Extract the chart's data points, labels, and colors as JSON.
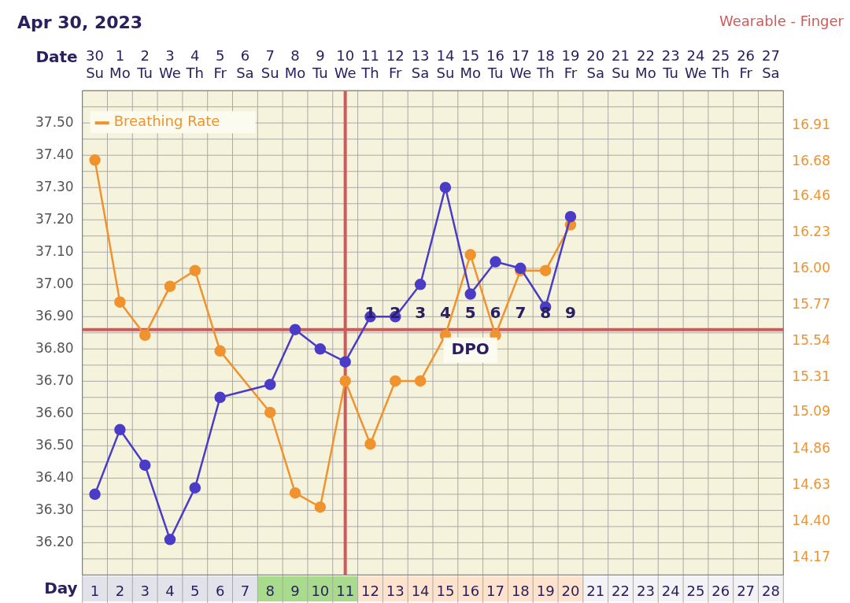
{
  "chart_data": {
    "type": "line",
    "title": "Apr 30, 2023",
    "subtitle": "Wearable - Finger",
    "xlabel": "Date",
    "x2label": "Day",
    "x": [
      "2023-04-30",
      "2023-05-01",
      "2023-05-02",
      "2023-05-03",
      "2023-05-04",
      "2023-05-05",
      "2023-05-06",
      "2023-05-07",
      "2023-05-08",
      "2023-05-09",
      "2023-05-10",
      "2023-05-11",
      "2023-05-12",
      "2023-05-13",
      "2023-05-14",
      "2023-05-15",
      "2023-05-16",
      "2023-05-17",
      "2023-05-18",
      "2023-05-19"
    ],
    "series": [
      {
        "color": "#4b3cc8",
        "values": [
          36.35,
          36.55,
          36.44,
          36.21,
          36.37,
          36.65,
          null,
          36.69,
          36.86,
          36.8,
          36.76,
          36.9,
          36.9,
          37.0,
          37.3,
          36.97,
          37.07,
          37.05,
          36.93,
          37.21
        ]
      },
      {
        "name": "Breathing Rate",
        "color": "#f0922e",
        "axis": "y2",
        "values": [
          16.69,
          15.79,
          15.58,
          15.89,
          15.99,
          15.48,
          null,
          15.09,
          14.58,
          14.49,
          15.29,
          14.89,
          15.29,
          15.29,
          15.58,
          16.09,
          15.58,
          15.99,
          15.99,
          16.28
        ]
      }
    ],
    "xlim": [
      "2023-04-29T12:00",
      "2023-05-27T12:00"
    ],
    "xticks": [
      {
        "value": "2023-04-30",
        "label": "30\nSu"
      },
      {
        "value": "2023-05-01",
        "label": "1\nMo"
      },
      {
        "value": "2023-05-02",
        "label": "2\nTu"
      },
      {
        "value": "2023-05-03",
        "label": "3\nWe"
      },
      {
        "value": "2023-05-04",
        "label": "4\nTh"
      },
      {
        "value": "2023-05-05",
        "label": "5\nFr"
      },
      {
        "value": "2023-05-06",
        "label": "6\nSa"
      },
      {
        "value": "2023-05-07",
        "label": "7\nSu"
      },
      {
        "value": "2023-05-08",
        "label": "8\nMo"
      },
      {
        "value": "2023-05-09",
        "label": "9\nTu"
      },
      {
        "value": "2023-05-10",
        "label": "10\nWe"
      },
      {
        "value": "2023-05-11",
        "label": "11\nTh"
      },
      {
        "value": "2023-05-12",
        "label": "12\nFr"
      },
      {
        "value": "2023-05-13",
        "label": "13\nSa"
      },
      {
        "value": "2023-05-14",
        "label": "14\nSu"
      },
      {
        "value": "2023-05-15",
        "label": "15\nMo"
      },
      {
        "value": "2023-05-16",
        "label": "16\nTu"
      },
      {
        "value": "2023-05-17",
        "label": "17\nWe"
      },
      {
        "value": "2023-05-18",
        "label": "18\nTh"
      },
      {
        "value": "2023-05-19",
        "label": "19\nFr"
      },
      {
        "value": "2023-05-20",
        "label": "20\nSa"
      },
      {
        "value": "2023-05-21",
        "label": "21\nSu"
      },
      {
        "value": "2023-05-22",
        "label": "22\nMo"
      },
      {
        "value": "2023-05-23",
        "label": "23\nTu"
      },
      {
        "value": "2023-05-24",
        "label": "24\nWe"
      },
      {
        "value": "2023-05-25",
        "label": "25\nTh"
      },
      {
        "value": "2023-05-26",
        "label": "26\nFr"
      },
      {
        "value": "2023-05-27",
        "label": "27\nSa"
      }
    ],
    "x2lim": [
      0.5,
      28.5
    ],
    "x2ticks": [
      1,
      2,
      3,
      4,
      5,
      6,
      7,
      8,
      9,
      10,
      11,
      12,
      13,
      14,
      15,
      16,
      17,
      18,
      19,
      20,
      21,
      22,
      23,
      24,
      25,
      26,
      27,
      28
    ],
    "ylim": [
      36.1,
      37.6
    ],
    "yticks": [
      {
        "value": 36.2,
        "label": "36.20"
      },
      {
        "value": 36.3,
        "label": "36.30"
      },
      {
        "value": 36.4,
        "label": "36.40"
      },
      {
        "value": 36.5,
        "label": "36.50"
      },
      {
        "value": 36.6,
        "label": "36.60"
      },
      {
        "value": 36.7,
        "label": "36.70"
      },
      {
        "value": 36.8,
        "label": "36.80"
      },
      {
        "value": 36.9,
        "label": "36.90"
      },
      {
        "value": 37.0,
        "label": "37.00"
      },
      {
        "value": 37.1,
        "label": "37.10"
      },
      {
        "value": 37.2,
        "label": "37.20"
      },
      {
        "value": 37.3,
        "label": "37.30"
      },
      {
        "value": 37.4,
        "label": "37.40"
      },
      {
        "value": 37.5,
        "label": "37.50"
      }
    ],
    "y2lim": [
      14.06,
      17.13
    ],
    "y2ticks": [
      {
        "value": 14.17,
        "label": "14.17"
      },
      {
        "value": 14.4,
        "label": "14.40"
      },
      {
        "value": 14.63,
        "label": "14.63"
      },
      {
        "value": 14.86,
        "label": "14.86"
      },
      {
        "value": 15.09,
        "label": "15.09"
      },
      {
        "value": 15.31,
        "label": "15.31"
      },
      {
        "value": 15.54,
        "label": "15.54"
      },
      {
        "value": 15.77,
        "label": "15.77"
      },
      {
        "value": 16.0,
        "label": "16.00"
      },
      {
        "value": 16.23,
        "label": "16.23"
      },
      {
        "value": 16.46,
        "label": "16.46"
      },
      {
        "value": 16.68,
        "label": "16.68"
      },
      {
        "value": 16.91,
        "label": "16.91"
      }
    ],
    "ref_lines": [
      {
        "axis": "x",
        "value": "2023-05-10",
        "color": "#d05a5a"
      },
      {
        "axis": "y",
        "value": 36.86,
        "color": "#d05a5a"
      }
    ],
    "annotations": [
      "1",
      "2",
      "3",
      "4",
      "5",
      "6",
      "7",
      "8",
      "9",
      "DPO"
    ],
    "grid": true,
    "legend": "top left",
    "marker": "circle",
    "line_style": "solid"
  }
}
